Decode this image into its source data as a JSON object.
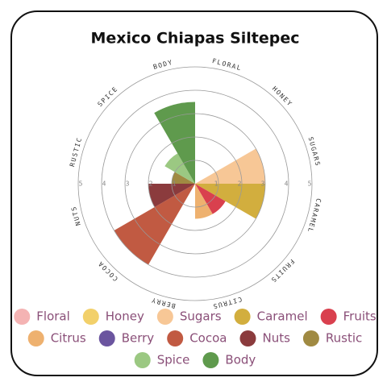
{
  "chart_data": {
    "type": "polar_bar",
    "title": "Mexico Chiapas Siltepec",
    "categories": [
      "Floral",
      "Honey",
      "Sugars",
      "Caramel",
      "Fruits",
      "Citrus",
      "Berry",
      "Cocoa",
      "Nuts",
      "Rustic",
      "Spice",
      "Body"
    ],
    "values": [
      0,
      0,
      3,
      3,
      1.5,
      1.5,
      0,
      4,
      2,
      1,
      1.5,
      3.5
    ],
    "colors": [
      "#f4b3b3",
      "#f2d06a",
      "#f7c796",
      "#d2ae3e",
      "#d9404e",
      "#eeb16f",
      "#6b559f",
      "#c15a42",
      "#8b3b3d",
      "#a08a42",
      "#9bc882",
      "#5f9a4d"
    ],
    "rlim": [
      0,
      5
    ],
    "rticks": [
      1,
      2,
      3,
      4,
      5
    ],
    "grid": true
  }
}
